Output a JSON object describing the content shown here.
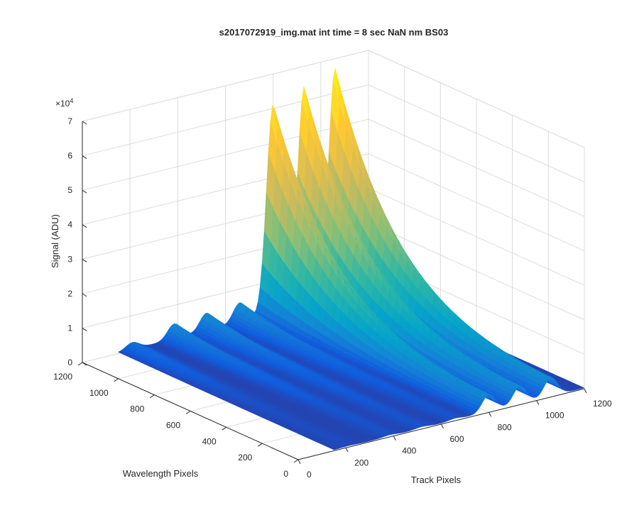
{
  "chart_data": {
    "type": "surface",
    "title": "s2017072919_img.mat int time = 8 sec  NaN nm BS03",
    "xlabel": "Track Pixels",
    "ylabel": "Wavelength Pixels",
    "zlabel": "Signal (ADU)",
    "z_exponent": "×10",
    "z_exponent_power": "4",
    "xlim": [
      0,
      1200
    ],
    "ylim": [
      0,
      1200
    ],
    "zlim": [
      0,
      70000
    ],
    "x_ticks": [
      "0",
      "200",
      "400",
      "600",
      "800",
      "1000",
      "1200"
    ],
    "y_ticks": [
      "0",
      "200",
      "400",
      "600",
      "800",
      "1000",
      "1200"
    ],
    "z_ticks": [
      "0",
      "1",
      "2",
      "3",
      "4",
      "5",
      "6",
      "7"
    ],
    "grid": true,
    "colormap": "parula",
    "colors": [
      "#352a87",
      "#0f5cdd",
      "#1481d6",
      "#06a4ca",
      "#2eb7a4",
      "#87bf77",
      "#d1bb59",
      "#fec832",
      "#f9fb0e"
    ],
    "track_peaks": [
      {
        "track": 210,
        "peak_signal": 2000
      },
      {
        "track": 385,
        "peak_signal": 4400
      },
      {
        "track": 520,
        "peak_signal": 5200
      },
      {
        "track": 660,
        "peak_signal": 5800
      },
      {
        "track": 800,
        "peak_signal": 61000
      },
      {
        "track": 930,
        "peak_signal": 64000
      },
      {
        "track": 1060,
        "peak_signal": 67000
      }
    ],
    "x_extent": [
      150,
      1200
    ],
    "y_extent": [
      0,
      1200
    ]
  }
}
